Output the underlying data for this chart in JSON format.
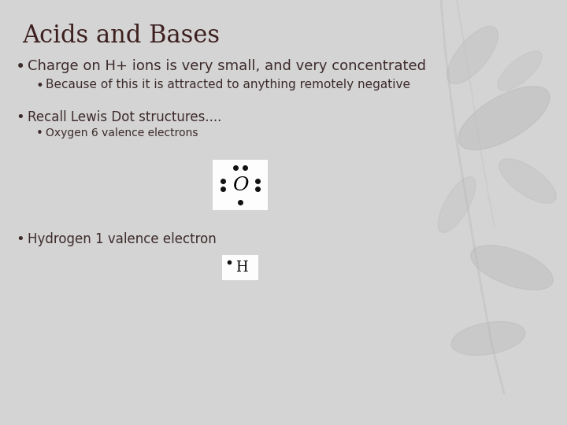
{
  "title": "Acids and Bases",
  "title_color": "#3d1f1f",
  "title_fontsize": 22,
  "background_color": "#d4d4d4",
  "text_color": "#3d2b2b",
  "bullet1": "Charge on H+ ions is very small, and very concentrated",
  "bullet1_fontsize": 13,
  "bullet2": "Because of this it is attracted to anything remotely negative",
  "bullet2_fontsize": 11,
  "bullet3": "Recall Lewis Dot structures....",
  "bullet3_fontsize": 12,
  "bullet4": "Oxygen 6 valence electrons",
  "bullet4_fontsize": 10,
  "bullet5": "Hydrogen 1 valence electron",
  "bullet5_fontsize": 12,
  "oxygen_label": "O",
  "hydrogen_label": "H",
  "box_color": "#ffffff",
  "dot_color": "#111111",
  "leaf_color": "#b8b8b8",
  "stem_color": "#c0c0c0"
}
